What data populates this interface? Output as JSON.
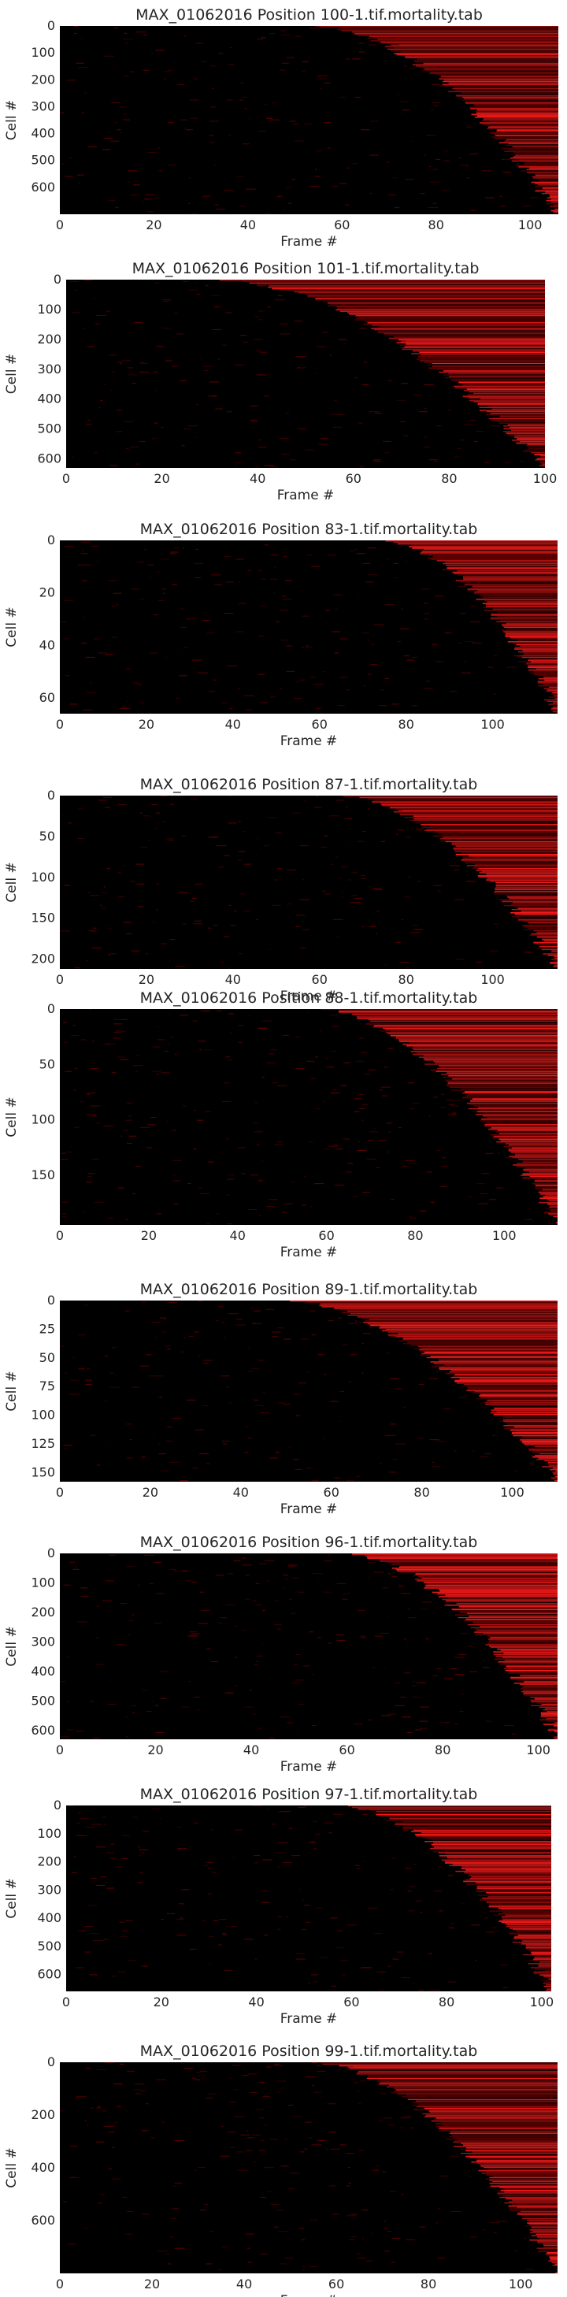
{
  "colors": {
    "background": "#000000",
    "signal": "#ff1a1a",
    "signal_dim": "#6b0000",
    "text": "#262626"
  },
  "chart_data": [
    {
      "type": "heatmap",
      "title": "MAX_01062016 Position 100-1.tif.mortality.tab",
      "xlabel": "Frame #",
      "ylabel": "Cell #",
      "xlim": [
        0,
        106
      ],
      "ylim": [
        0,
        700
      ],
      "x_ticks": [
        0,
        20,
        40,
        60,
        80,
        100
      ],
      "y_ticks": [
        0,
        100,
        200,
        300,
        400,
        500,
        600
      ],
      "onset_frame_range": [
        55,
        106
      ],
      "grid": false,
      "colormap": "black-red"
    },
    {
      "type": "heatmap",
      "title": "MAX_01062016 Position 101-1.tif.mortality.tab",
      "xlabel": "Frame #",
      "ylabel": "Cell #",
      "xlim": [
        0,
        100
      ],
      "ylim": [
        0,
        630
      ],
      "x_ticks": [
        0,
        20,
        40,
        60,
        80,
        100
      ],
      "y_ticks": [
        0,
        100,
        200,
        300,
        400,
        500,
        600
      ],
      "onset_frame_range": [
        32,
        100
      ],
      "grid": false,
      "colormap": "black-red"
    },
    {
      "type": "heatmap",
      "title": "MAX_01062016 Position 83-1.tif.mortality.tab",
      "xlabel": "Frame #",
      "ylabel": "Cell #",
      "xlim": [
        0,
        115
      ],
      "ylim": [
        0,
        66
      ],
      "x_ticks": [
        0,
        20,
        40,
        60,
        80,
        100
      ],
      "y_ticks": [
        0,
        20,
        40,
        60
      ],
      "onset_frame_range": [
        75,
        115
      ],
      "grid": false,
      "colormap": "black-red"
    },
    {
      "type": "heatmap",
      "title": "MAX_01062016 Position 87-1.tif.mortality.tab",
      "xlabel": "Frame #",
      "ylabel": "Cell #",
      "xlim": [
        0,
        115
      ],
      "ylim": [
        0,
        212
      ],
      "x_ticks": [
        0,
        20,
        40,
        60,
        80,
        100
      ],
      "y_ticks": [
        0,
        50,
        100,
        150,
        200
      ],
      "onset_frame_range": [
        65,
        115
      ],
      "grid": false,
      "colormap": "black-red"
    },
    {
      "type": "heatmap",
      "title": "MAX_01062016 Position 88-1.tif.mortality.tab",
      "xlabel": "Frame #",
      "ylabel": "Cell #",
      "xlim": [
        0,
        112
      ],
      "ylim": [
        0,
        195
      ],
      "x_ticks": [
        0,
        20,
        40,
        60,
        80,
        100
      ],
      "y_ticks": [
        0,
        50,
        100,
        150
      ],
      "onset_frame_range": [
        58,
        112
      ],
      "grid": false,
      "colormap": "black-red"
    },
    {
      "type": "heatmap",
      "title": "MAX_01062016 Position 89-1.tif.mortality.tab",
      "xlabel": "Frame #",
      "ylabel": "Cell #",
      "xlim": [
        0,
        110
      ],
      "ylim": [
        0,
        158
      ],
      "x_ticks": [
        0,
        20,
        40,
        60,
        80,
        100
      ],
      "y_ticks": [
        0,
        25,
        50,
        75,
        100,
        125,
        150
      ],
      "onset_frame_range": [
        50,
        110
      ],
      "grid": false,
      "colormap": "black-red"
    },
    {
      "type": "heatmap",
      "title": "MAX_01062016 Position 96-1.tif.mortality.tab",
      "xlabel": "Frame #",
      "ylabel": "Cell #",
      "xlim": [
        0,
        104
      ],
      "ylim": [
        0,
        630
      ],
      "x_ticks": [
        0,
        20,
        40,
        60,
        80,
        100
      ],
      "y_ticks": [
        0,
        100,
        200,
        300,
        400,
        500,
        600
      ],
      "onset_frame_range": [
        60,
        104
      ],
      "grid": false,
      "colormap": "black-red"
    },
    {
      "type": "heatmap",
      "title": "MAX_01062016 Position 97-1.tif.mortality.tab",
      "xlabel": "Frame #",
      "ylabel": "Cell #",
      "xlim": [
        0,
        102
      ],
      "ylim": [
        0,
        660
      ],
      "x_ticks": [
        0,
        20,
        40,
        60,
        80,
        100
      ],
      "y_ticks": [
        0,
        100,
        200,
        300,
        400,
        500,
        600
      ],
      "onset_frame_range": [
        58,
        102
      ],
      "grid": false,
      "colormap": "black-red"
    },
    {
      "type": "heatmap",
      "title": "MAX_01062016 Position 99-1.tif.mortality.tab",
      "xlabel": "Frame #",
      "ylabel": "Cell #",
      "xlim": [
        0,
        108
      ],
      "ylim": [
        0,
        800
      ],
      "x_ticks": [
        0,
        20,
        40,
        60,
        80,
        100
      ],
      "y_ticks": [
        200,
        400,
        600
      ],
      "extra_y_ticks": [
        0
      ],
      "onset_frame_range": [
        55,
        108
      ],
      "grid": false,
      "colormap": "black-red"
    }
  ]
}
